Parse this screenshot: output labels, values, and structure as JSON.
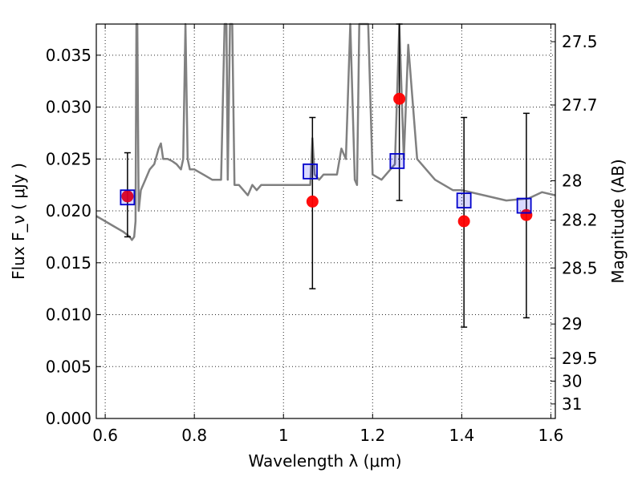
{
  "chart_data": {
    "type": "scatter",
    "xlabel": "Wavelength λ (μm)",
    "ylabel": "Flux F_ν ( μJy )",
    "ylabel_right": "Magnitude (AB)",
    "xlim": [
      0.58,
      1.61
    ],
    "ylim": [
      0.0,
      0.038
    ],
    "grid": true,
    "x_ticks": [
      0.6,
      0.8,
      1.0,
      1.2,
      1.4,
      1.6
    ],
    "x_tick_labels": [
      "0.6",
      "0.8",
      "1",
      "1.2",
      "1.4",
      "1.6"
    ],
    "y_ticks": [
      0.0,
      0.005,
      0.01,
      0.015,
      0.02,
      0.025,
      0.03,
      0.035
    ],
    "y_tick_labels": [
      "0.000",
      "0.005",
      "0.010",
      "0.015",
      "0.020",
      "0.025",
      "0.030",
      "0.035"
    ],
    "right_ticks": [
      {
        "label": "27.5",
        "flux": 0.0363
      },
      {
        "label": "27.7",
        "flux": 0.0302
      },
      {
        "label": "28",
        "flux": 0.0229
      },
      {
        "label": "28.2",
        "flux": 0.0191
      },
      {
        "label": "28.5",
        "flux": 0.0145
      },
      {
        "label": "29",
        "flux": 0.0091
      },
      {
        "label": "29.5",
        "flux": 0.0058
      },
      {
        "label": "30",
        "flux": 0.0036
      },
      {
        "label": "31",
        "flux": 0.0014
      }
    ],
    "series": [
      {
        "kind": "line",
        "color": "#808080",
        "x": [
          0.58,
          0.6,
          0.62,
          0.64,
          0.655,
          0.66,
          0.665,
          0.668,
          0.67,
          0.672,
          0.675,
          0.68,
          0.69,
          0.7,
          0.71,
          0.72,
          0.725,
          0.73,
          0.74,
          0.75,
          0.76,
          0.77,
          0.775,
          0.78,
          0.785,
          0.79,
          0.8,
          0.82,
          0.84,
          0.86,
          0.868,
          0.872,
          0.875,
          0.88,
          0.885,
          0.89,
          0.9,
          0.91,
          0.92,
          0.93,
          0.94,
          0.95,
          0.96,
          0.98,
          1.0,
          1.02,
          1.04,
          1.06,
          1.065,
          1.07,
          1.08,
          1.09,
          1.1,
          1.12,
          1.13,
          1.14,
          1.15,
          1.16,
          1.165,
          1.17,
          1.18,
          1.19,
          1.2,
          1.22,
          1.24,
          1.25,
          1.26,
          1.27,
          1.28,
          1.3,
          1.32,
          1.34,
          1.36,
          1.38,
          1.4,
          1.45,
          1.5,
          1.55,
          1.58,
          1.61
        ],
        "y": [
          0.0195,
          0.019,
          0.0185,
          0.018,
          0.0175,
          0.0172,
          0.0175,
          0.019,
          0.038,
          0.038,
          0.02,
          0.022,
          0.023,
          0.024,
          0.0245,
          0.026,
          0.0265,
          0.025,
          0.025,
          0.0248,
          0.0245,
          0.024,
          0.025,
          0.038,
          0.025,
          0.024,
          0.024,
          0.0235,
          0.023,
          0.023,
          0.038,
          0.038,
          0.023,
          0.038,
          0.038,
          0.0225,
          0.0225,
          0.022,
          0.0215,
          0.0225,
          0.022,
          0.0225,
          0.0225,
          0.0225,
          0.0225,
          0.0225,
          0.0225,
          0.0225,
          0.027,
          0.0235,
          0.023,
          0.0235,
          0.0235,
          0.0235,
          0.026,
          0.025,
          0.038,
          0.023,
          0.0225,
          0.038,
          0.038,
          0.038,
          0.0235,
          0.023,
          0.024,
          0.0245,
          0.038,
          0.025,
          0.036,
          0.025,
          0.024,
          0.023,
          0.0225,
          0.022,
          0.022,
          0.0215,
          0.021,
          0.0212,
          0.0218,
          0.0215
        ]
      },
      {
        "kind": "squares",
        "color": "#0000cc",
        "x": [
          0.65,
          1.06,
          1.255,
          1.405,
          1.54
        ],
        "y": [
          0.0213,
          0.0238,
          0.0248,
          0.021,
          0.0205
        ]
      },
      {
        "kind": "points_with_errors",
        "color": "#ff0000",
        "x": [
          0.65,
          1.065,
          1.26,
          1.405,
          1.545
        ],
        "y": [
          0.0214,
          0.0209,
          0.0308,
          0.019,
          0.0196
        ],
        "err_low": [
          0.0175,
          0.0125,
          0.021,
          0.0088,
          0.0097
        ],
        "err_high": [
          0.0256,
          0.029,
          0.038,
          0.029,
          0.0294
        ]
      }
    ]
  }
}
